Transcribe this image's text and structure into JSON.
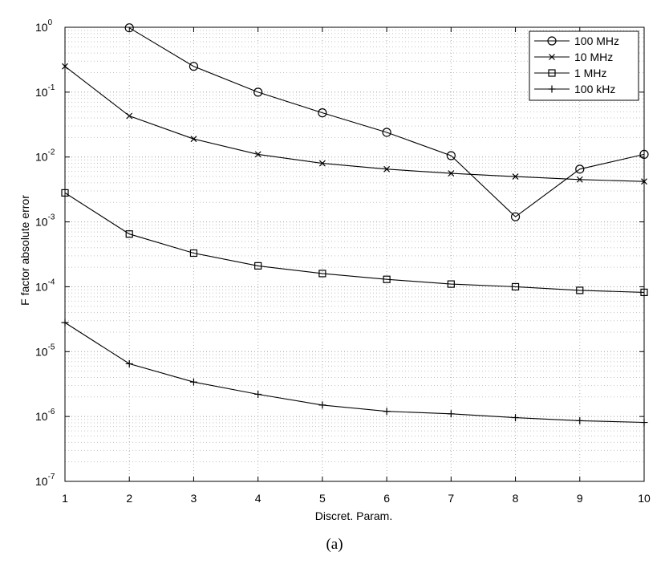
{
  "chart_data": {
    "type": "line",
    "xlabel": "Discret. Param.",
    "ylabel": "F factor absolute error",
    "x": [
      1,
      2,
      3,
      4,
      5,
      6,
      7,
      8,
      9,
      10
    ],
    "xlim": [
      1,
      10
    ],
    "ylim": [
      1e-07,
      1
    ],
    "yscale": "log",
    "grid": true,
    "legend_position": "top-right",
    "x_ticks": [
      "1",
      "2",
      "3",
      "4",
      "5",
      "6",
      "7",
      "8",
      "9",
      "10"
    ],
    "y_ticks": [
      {
        "value": 1,
        "base": "10",
        "exp": "0"
      },
      {
        "value": 0.1,
        "base": "10",
        "exp": "-1"
      },
      {
        "value": 0.01,
        "base": "10",
        "exp": "-2"
      },
      {
        "value": 0.001,
        "base": "10",
        "exp": "-3"
      },
      {
        "value": 0.0001,
        "base": "10",
        "exp": "-4"
      },
      {
        "value": 1e-05,
        "base": "10",
        "exp": "-5"
      },
      {
        "value": 1e-06,
        "base": "10",
        "exp": "-6"
      },
      {
        "value": 1e-07,
        "base": "10",
        "exp": "-7"
      }
    ],
    "series": [
      {
        "name": "100 MHz",
        "marker": "circle",
        "values": [
          null,
          0.98,
          0.25,
          0.1,
          0.048,
          0.024,
          0.0105,
          0.0012,
          0.0065,
          0.011
        ]
      },
      {
        "name": "10 MHz",
        "marker": "x",
        "values": [
          0.25,
          0.043,
          0.019,
          0.011,
          0.008,
          0.0065,
          0.0056,
          0.005,
          0.0045,
          0.0042
        ]
      },
      {
        "name": "1 MHz",
        "marker": "square",
        "values": [
          0.0028,
          0.00065,
          0.00033,
          0.00021,
          0.00016,
          0.00013,
          0.00011,
          0.0001,
          8.8e-05,
          8.2e-05
        ]
      },
      {
        "name": "100 kHz",
        "marker": "plus",
        "values": [
          2.8e-05,
          6.5e-06,
          3.4e-06,
          2.2e-06,
          1.5e-06,
          1.2e-06,
          1.1e-06,
          9.6e-07,
          8.6e-07,
          8.1e-07
        ]
      }
    ]
  },
  "caption": "(a)"
}
